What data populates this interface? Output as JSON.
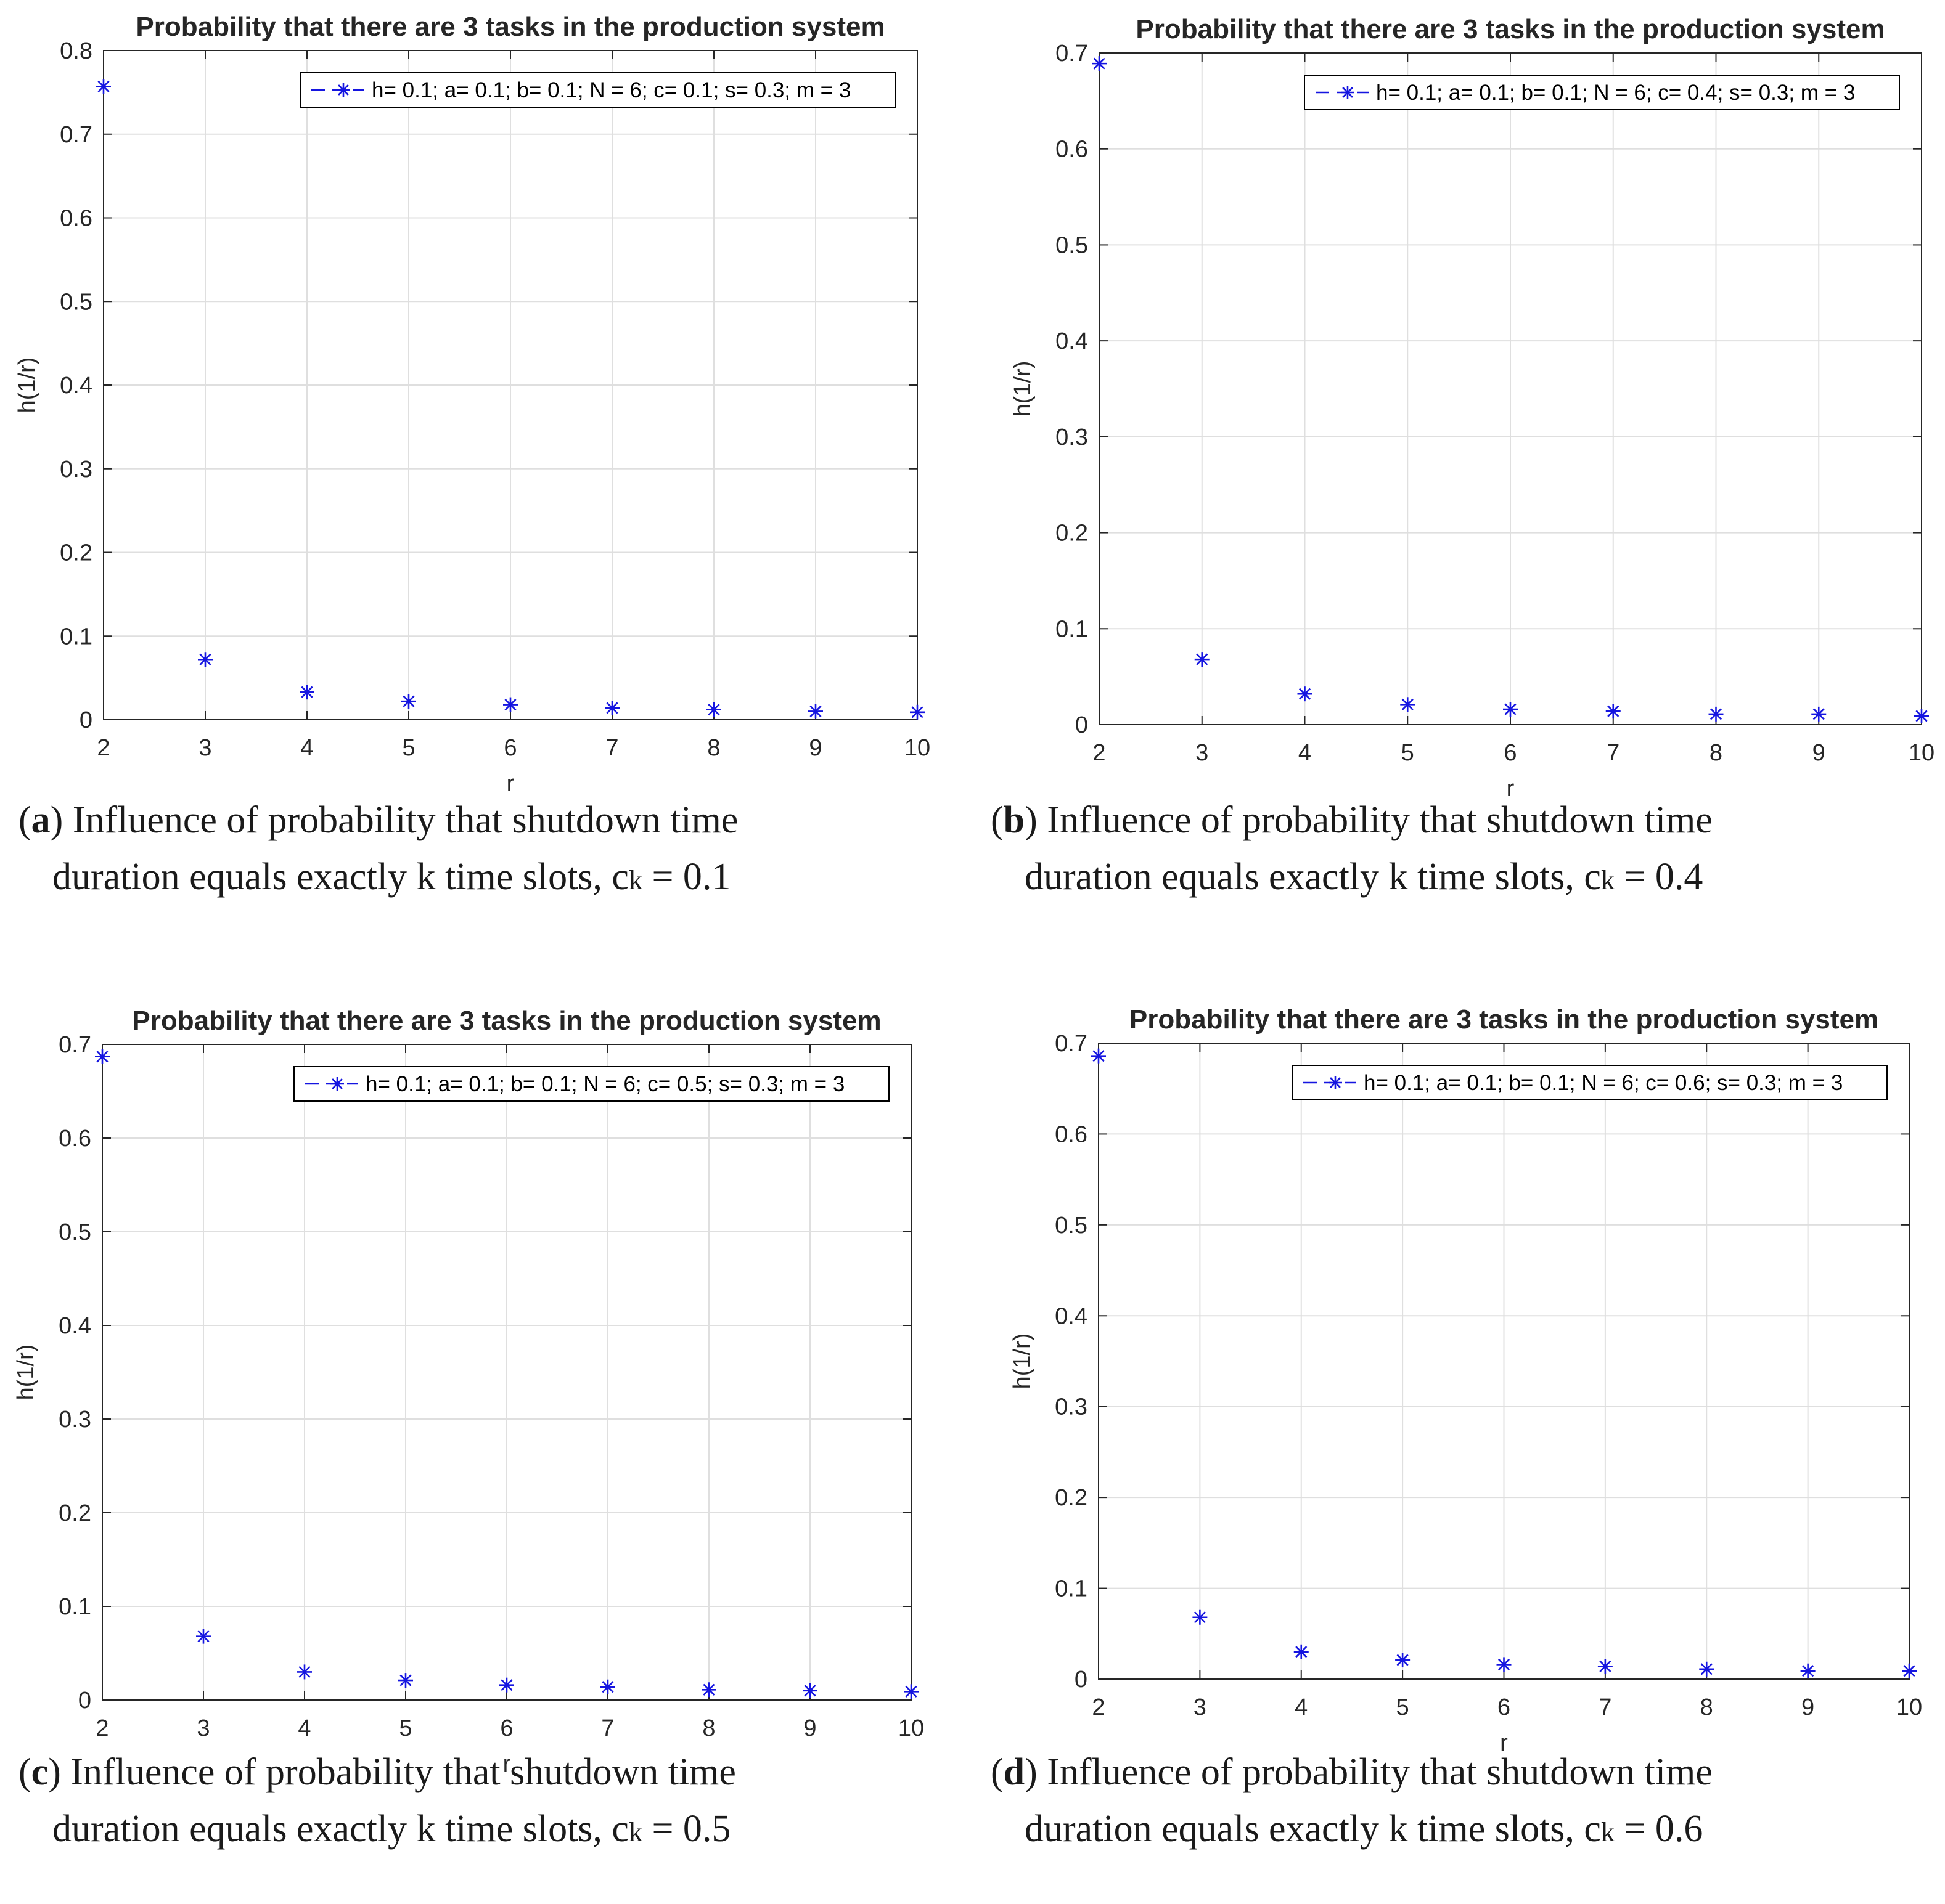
{
  "colors": {
    "marker": "#1515e0",
    "grid": "#dfdfdf",
    "axis": "#262626",
    "frame": "#000000",
    "text": "#262626"
  },
  "chart_data": [
    {
      "type": "scatter",
      "title": "Probability that there are 3 tasks in the production system",
      "xlabel": "r",
      "ylabel": "h(1/r)",
      "xlim": [
        2,
        10
      ],
      "ylim": [
        0,
        0.8
      ],
      "xticks": [
        "2",
        "3",
        "4",
        "5",
        "6",
        "7",
        "8",
        "9",
        "10"
      ],
      "yticks": [
        "0",
        "0.1",
        "0.2",
        "0.3",
        "0.4",
        "0.5",
        "0.6",
        "0.7",
        "0.8"
      ],
      "grid": true,
      "legend_position": "top-right",
      "marker": "*",
      "series": [
        {
          "name": "h= 0.1; a= 0.1; b= 0.1; N = 6; c= 0.1; s= 0.3; m = 3",
          "x": [
            2,
            3,
            4,
            5,
            6,
            7,
            8,
            9,
            10
          ],
          "y": [
            0.757,
            0.072,
            0.033,
            0.022,
            0.018,
            0.014,
            0.012,
            0.01,
            0.009
          ]
        }
      ]
    },
    {
      "type": "scatter",
      "title": "Probability that there are 3 tasks in the production system",
      "xlabel": "r",
      "ylabel": "h(1/r)",
      "xlim": [
        2,
        10
      ],
      "ylim": [
        0,
        0.7
      ],
      "xticks": [
        "2",
        "3",
        "4",
        "5",
        "6",
        "7",
        "8",
        "9",
        "10"
      ],
      "yticks": [
        "0",
        "0.1",
        "0.2",
        "0.3",
        "0.4",
        "0.5",
        "0.6",
        "0.7"
      ],
      "grid": true,
      "legend_position": "top-right",
      "marker": "*",
      "series": [
        {
          "name": "h= 0.1; a= 0.1; b= 0.1; N = 6; c= 0.4; s= 0.3; m = 3",
          "x": [
            2,
            3,
            4,
            5,
            6,
            7,
            8,
            9,
            10
          ],
          "y": [
            0.689,
            0.068,
            0.032,
            0.021,
            0.016,
            0.014,
            0.011,
            0.011,
            0.009
          ]
        }
      ]
    },
    {
      "type": "scatter",
      "title": "Probability that there are 3 tasks in the production system",
      "xlabel": "r",
      "ylabel": "h(1/r)",
      "xlim": [
        2,
        10
      ],
      "ylim": [
        0,
        0.7
      ],
      "xticks": [
        "2",
        "3",
        "4",
        "5",
        "6",
        "7",
        "8",
        "9",
        "10"
      ],
      "yticks": [
        "0",
        "0.1",
        "0.2",
        "0.3",
        "0.4",
        "0.5",
        "0.6",
        "0.7"
      ],
      "grid": true,
      "legend_position": "top-right",
      "marker": "*",
      "series": [
        {
          "name": "h= 0.1; a= 0.1; b= 0.1; N = 6; c= 0.5; s= 0.3; m = 3",
          "x": [
            2,
            3,
            4,
            5,
            6,
            7,
            8,
            9,
            10
          ],
          "y": [
            0.687,
            0.068,
            0.03,
            0.021,
            0.016,
            0.014,
            0.011,
            0.01,
            0.009
          ]
        }
      ]
    },
    {
      "type": "scatter",
      "title": "Probability that there are 3 tasks in the production system",
      "xlabel": "r",
      "ylabel": "h(1/r)",
      "xlim": [
        2,
        10
      ],
      "ylim": [
        0,
        0.7
      ],
      "xticks": [
        "2",
        "3",
        "4",
        "5",
        "6",
        "7",
        "8",
        "9",
        "10"
      ],
      "yticks": [
        "0",
        "0.1",
        "0.2",
        "0.3",
        "0.4",
        "0.5",
        "0.6",
        "0.7"
      ],
      "grid": true,
      "legend_position": "top-right",
      "marker": "*",
      "series": [
        {
          "name": "h= 0.1; a= 0.1; b= 0.1; N = 6; c= 0.6; s= 0.3; m = 3",
          "x": [
            2,
            3,
            4,
            5,
            6,
            7,
            8,
            9,
            10
          ],
          "y": [
            0.686,
            0.068,
            0.03,
            0.021,
            0.016,
            0.014,
            0.011,
            0.009,
            0.009
          ]
        }
      ]
    }
  ],
  "captions": [
    {
      "letter": "a",
      "line1_rest": ") Influence of probability that shutdown time",
      "line2": "duration equals exactly k time slots, c",
      "sub": "k",
      "value": " = 0.1"
    },
    {
      "letter": "b",
      "line1_rest": ") Influence of probability that shutdown time",
      "line2": "duration equals exactly k time slots, c",
      "sub": "k",
      "value": " = 0.4"
    },
    {
      "letter": "c",
      "line1_rest": ") Influence of probability that shutdown time",
      "line2": "duration equals exactly k time slots, c",
      "sub": "k",
      "value": " = 0.5"
    },
    {
      "letter": "d",
      "line1_rest": ") Influence of probability that shutdown time",
      "line2": "duration equals exactly k time slots, c",
      "sub": "k",
      "value": " = 0.6"
    }
  ]
}
